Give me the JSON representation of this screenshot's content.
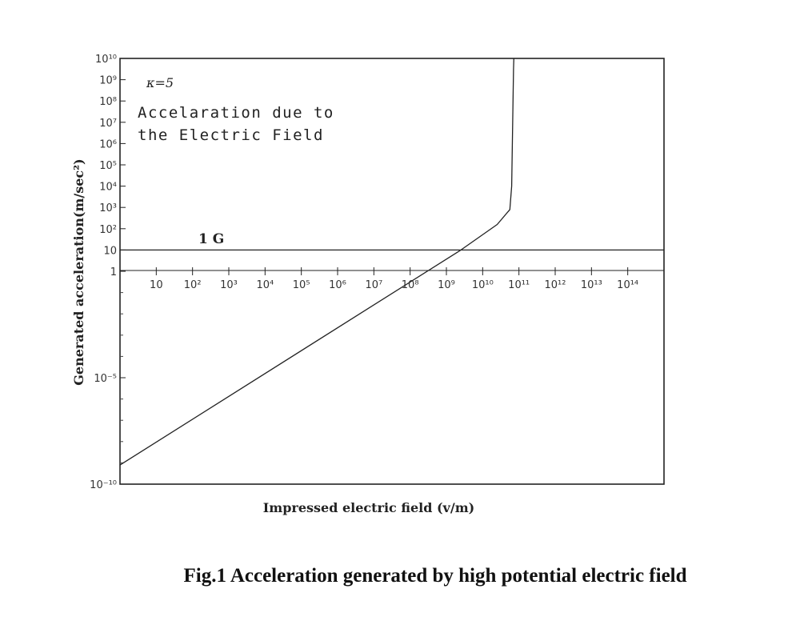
{
  "figure": {
    "caption": "Fig.1 Acceleration generated by high potential electric field"
  },
  "chart_data": {
    "type": "line",
    "title": "",
    "xlabel": "Impressed electric field (v/m)",
    "ylabel": "Generated acceleration(m/sec²)",
    "xscale": "log",
    "yscale": "log",
    "xlim_exp": [
      0,
      15
    ],
    "ylim_exp": [
      -10,
      10
    ],
    "x_ticks": [
      {
        "exp": 1,
        "label": "10"
      },
      {
        "exp": 2,
        "label": "10²"
      },
      {
        "exp": 3,
        "label": "10³"
      },
      {
        "exp": 4,
        "label": "10⁴"
      },
      {
        "exp": 5,
        "label": "10⁵"
      },
      {
        "exp": 6,
        "label": "10⁶"
      },
      {
        "exp": 7,
        "label": "10⁷"
      },
      {
        "exp": 8,
        "label": "10⁸"
      },
      {
        "exp": 9,
        "label": "10⁹"
      },
      {
        "exp": 10,
        "label": "10¹⁰"
      },
      {
        "exp": 11,
        "label": "10¹¹"
      },
      {
        "exp": 12,
        "label": "10¹²"
      },
      {
        "exp": 13,
        "label": "10¹³"
      },
      {
        "exp": 14,
        "label": "10¹⁴"
      }
    ],
    "y_ticks": [
      {
        "exp": 10,
        "label": "10¹⁰"
      },
      {
        "exp": 9,
        "label": "10⁹"
      },
      {
        "exp": 8,
        "label": "10⁸"
      },
      {
        "exp": 7,
        "label": "10⁷"
      },
      {
        "exp": 6,
        "label": "10⁶"
      },
      {
        "exp": 5,
        "label": "10⁵"
      },
      {
        "exp": 4,
        "label": "10⁴"
      },
      {
        "exp": 3,
        "label": "10³"
      },
      {
        "exp": 2,
        "label": "10²"
      },
      {
        "exp": 1,
        "label": "10"
      },
      {
        "exp": 0,
        "label": "1"
      },
      {
        "exp": -5,
        "label": "10⁻⁵"
      },
      {
        "exp": -10,
        "label": "10⁻¹⁰"
      }
    ],
    "series": [
      {
        "name": "Accelaration due to the Electric Field",
        "points_exp": [
          {
            "x": 0.0,
            "y": -9.1
          },
          {
            "x": 9.4,
            "y": 1.0
          },
          {
            "x": 10.4,
            "y": 2.2
          },
          {
            "x": 10.75,
            "y": 2.9
          },
          {
            "x": 10.8,
            "y": 4.0
          },
          {
            "x": 10.85,
            "y": 9.5
          },
          {
            "x": 10.86,
            "y": 10.0
          }
        ]
      },
      {
        "name": "1 G",
        "points_exp": [
          {
            "x": 0.0,
            "y": 1.0
          },
          {
            "x": 15.0,
            "y": 1.0
          }
        ]
      }
    ],
    "annotations": [
      {
        "text": "κ=5"
      },
      {
        "text": "Accelaration due to"
      },
      {
        "text": "the Electric Field"
      },
      {
        "text": "1 G"
      }
    ]
  }
}
